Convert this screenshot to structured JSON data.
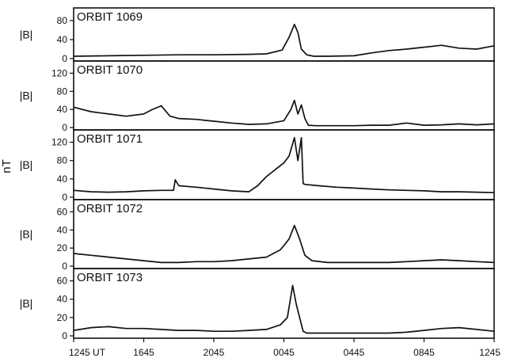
{
  "chart_data": {
    "type": "line",
    "ylabel": "nT",
    "xlabel": "",
    "grid": false,
    "x_time_axis": {
      "ticks": [
        {
          "value": 0,
          "label": "1245 UT"
        },
        {
          "value": 4,
          "label": "1645"
        },
        {
          "value": 8,
          "label": "2045"
        },
        {
          "value": 12,
          "label": "0045"
        },
        {
          "value": 16,
          "label": "0445"
        },
        {
          "value": 20,
          "label": "0845"
        },
        {
          "value": 24,
          "label": "1245"
        }
      ],
      "range": [
        0,
        24
      ]
    },
    "panels": [
      {
        "title": "ORBIT 1069",
        "panel_ylabel": "|B|",
        "ylim": [
          0,
          100
        ],
        "yticks": [
          0,
          40,
          80
        ],
        "x": [
          0,
          2,
          4,
          6,
          8,
          10,
          11,
          11.9,
          12.3,
          12.6,
          12.8,
          13.0,
          13.3,
          13.7,
          14.5,
          16,
          17,
          18,
          19,
          20,
          21,
          22,
          23,
          24
        ],
        "y": [
          5,
          6,
          7,
          8,
          8,
          9,
          10,
          18,
          45,
          72,
          55,
          20,
          8,
          5,
          5,
          6,
          12,
          17,
          20,
          24,
          28,
          22,
          20,
          27
        ]
      },
      {
        "title": "ORBIT 1070",
        "panel_ylabel": "|B|",
        "ylim": [
          0,
          140
        ],
        "yticks": [
          0,
          40,
          80,
          120
        ],
        "x": [
          0,
          1,
          2,
          3,
          4,
          4.5,
          5,
          5.5,
          6,
          7,
          8,
          9,
          10,
          11,
          12,
          12.4,
          12.6,
          12.8,
          13.0,
          13.2,
          13.4,
          13.8,
          15,
          16,
          17,
          18,
          19,
          20,
          21,
          22,
          23,
          24
        ],
        "y": [
          45,
          35,
          30,
          25,
          30,
          40,
          48,
          25,
          20,
          18,
          14,
          10,
          7,
          8,
          15,
          40,
          60,
          30,
          50,
          20,
          5,
          4,
          4,
          4,
          5,
          5,
          10,
          5,
          6,
          8,
          6,
          8
        ]
      },
      {
        "title": "ORBIT 1071",
        "panel_ylabel": "|B|",
        "ylim": [
          0,
          140
        ],
        "yticks": [
          0,
          40,
          80,
          120
        ],
        "x": [
          0,
          1,
          2,
          3,
          4,
          5,
          5.7,
          5.8,
          6,
          7,
          8,
          9,
          10,
          10.5,
          11,
          11.5,
          12,
          12.3,
          12.6,
          12.8,
          13.0,
          13.1,
          13.2,
          14,
          15,
          16,
          17,
          18,
          19,
          20,
          21,
          22,
          23,
          24
        ],
        "y": [
          15,
          12,
          11,
          12,
          14,
          15,
          15,
          38,
          25,
          22,
          18,
          14,
          12,
          25,
          45,
          60,
          75,
          90,
          130,
          80,
          130,
          30,
          28,
          25,
          22,
          20,
          18,
          16,
          15,
          14,
          12,
          12,
          11,
          10
        ]
      },
      {
        "title": "ORBIT 1072",
        "panel_ylabel": "|B|",
        "ylim": [
          0,
          70
        ],
        "yticks": [
          0,
          20,
          40,
          60
        ],
        "x": [
          0,
          1,
          2,
          3,
          4,
          5,
          6,
          7,
          8,
          9,
          10,
          11,
          11.8,
          12.3,
          12.6,
          12.9,
          13.2,
          13.6,
          14.5,
          16,
          18,
          19,
          20,
          21,
          22,
          23,
          24
        ],
        "y": [
          14,
          12,
          10,
          8,
          6,
          4,
          4,
          5,
          5,
          6,
          8,
          10,
          18,
          30,
          45,
          30,
          12,
          6,
          4,
          4,
          4,
          5,
          6,
          7,
          6,
          5,
          4
        ]
      },
      {
        "title": "ORBIT 1073",
        "panel_ylabel": "|B|",
        "ylim": [
          0,
          70
        ],
        "yticks": [
          0,
          20,
          40,
          60
        ],
        "x": [
          0,
          1,
          2,
          3,
          4,
          5,
          6,
          7,
          8,
          9,
          10,
          11,
          11.8,
          12.2,
          12.5,
          12.7,
          12.9,
          13.1,
          13.3,
          14,
          16,
          18,
          19,
          20,
          21,
          22,
          23,
          24
        ],
        "y": [
          6,
          9,
          10,
          8,
          8,
          7,
          6,
          6,
          5,
          5,
          6,
          7,
          12,
          20,
          55,
          35,
          20,
          5,
          3,
          3,
          3,
          3,
          4,
          6,
          8,
          9,
          7,
          5
        ]
      }
    ]
  }
}
